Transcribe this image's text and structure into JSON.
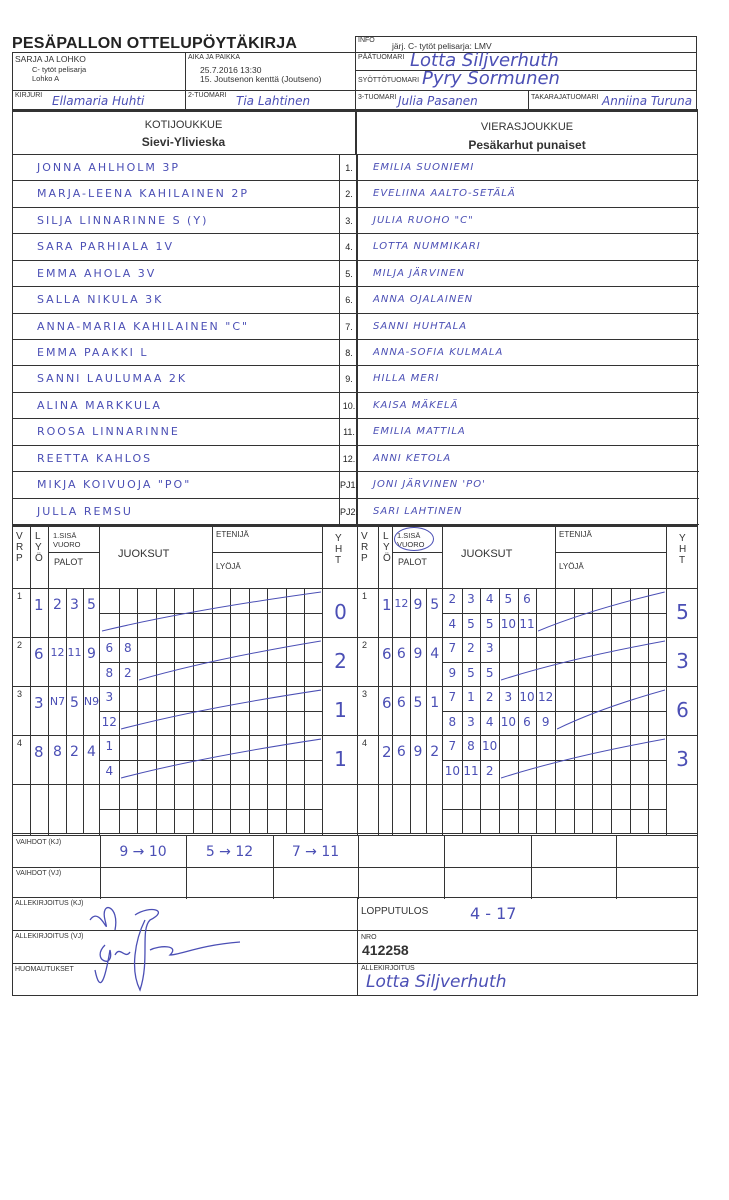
{
  "form": {
    "title": "PESÄPALLON OTTELUPÖYTÄKIRJA",
    "info_label": "INFO",
    "info_value": "järj. C- tytöt pelisarja: LMV",
    "series_label": "SARJA JA LOHKO",
    "series_value_1": "C- tytöt pelisarja",
    "series_value_2": "Lohko A",
    "time_place_label": "AIKA JA PAIKKA",
    "time_value": "25.7.2016 13:30",
    "place_value": "15. Joutsenon kenttä (Joutseno)",
    "head_umpire_label": "PÄÄTUOMARI",
    "head_umpire_value": "Lotta Siljverhuth",
    "pitch_umpire_label": "SYÖTTÖTUOMARI",
    "pitch_umpire_value": "Pyry Sormunen",
    "scorer_label": "KIRJURI",
    "scorer_value": "Ellamaria Huhti",
    "umpire2_label": "2-TUOMARI",
    "umpire2_value": "Tia Lahtinen",
    "umpire3_label": "3-TUOMARI",
    "umpire3_value": "Julia Pasanen",
    "back_umpire_label": "TAKARAJATUOMARI",
    "back_umpire_value": "Anniina Turuna"
  },
  "teams": {
    "home_label": "KOTIJOUKKUE",
    "home_name": "Sievi-Ylivieska",
    "away_label": "VIERASJOUKKUE",
    "away_name": "Pesäkarhut punaiset"
  },
  "roster": [
    {
      "no": "1.",
      "home": "JONNA AHLHOLM 3P",
      "away": "EMILIA SUONIEMI"
    },
    {
      "no": "2.",
      "home": "MARJA-LEENA KAHILAINEN 2P",
      "away": "EVELIINA AALTO-SETÄLÄ"
    },
    {
      "no": "3.",
      "home": "SILJA LINNARINNE S (Y)",
      "away": "JULIA RUOHO \"C\""
    },
    {
      "no": "4.",
      "home": "SARA PARHIALA 1V",
      "away": "LOTTA NUMMIKARI"
    },
    {
      "no": "5.",
      "home": "EMMA AHOLA 3V",
      "away": "MILJA JÄRVINEN"
    },
    {
      "no": "6.",
      "home": "SALLA NIKULA 3K",
      "away": "ANNA OJALAINEN"
    },
    {
      "no": "7.",
      "home": "ANNA-MARIA KAHILAINEN \"C\"",
      "away": "SANNI HUHTALA"
    },
    {
      "no": "8.",
      "home": "EMMA PAAKKI L",
      "away": "ANNA-SOFIA KULMALA"
    },
    {
      "no": "9.",
      "home": "SANNI LAULUMAA 2K",
      "away": "HILLA MERI"
    },
    {
      "no": "10.",
      "home": "ALINA MARKKULA",
      "away": "KAISA MÄKELÄ"
    },
    {
      "no": "11.",
      "home": "ROOSA LINNARINNE",
      "away": "EMILIA MATTILA"
    },
    {
      "no": "12.",
      "home": "REETTA KAHLOS",
      "away": "ANNI KETOLA"
    },
    {
      "no": "PJ1.",
      "home": "MIKJA KOIVUOJA \"PO\"",
      "away": "JONI JÄRVINEN 'PO'"
    },
    {
      "no": "PJ2.",
      "home": "JULLA REMSU",
      "away": "SARI LAHTINEN"
    }
  ],
  "score_headers": {
    "vrp": [
      "V",
      "R",
      "P"
    ],
    "lyo": [
      "L",
      "Y",
      "Ö"
    ],
    "first_inning": "1.SISÄ VUORO",
    "outs": "PALOT",
    "runs": "JUOKSUT",
    "runner": "ETENIJÄ",
    "batter": "LYÖJÄ",
    "total": [
      "Y",
      "H",
      "T"
    ]
  },
  "innings": {
    "home": [
      {
        "vrp": "1",
        "lyo": "1",
        "outs": [
          "2",
          "3",
          "5"
        ],
        "runner": [],
        "batter": [],
        "total": "0"
      },
      {
        "vrp": "2",
        "lyo": "6",
        "outs": [
          "12",
          "11",
          "9"
        ],
        "runner": [
          "6",
          "8"
        ],
        "batter": [
          "8",
          "2"
        ],
        "total": "2"
      },
      {
        "vrp": "3",
        "lyo": "3",
        "outs": [
          "N7",
          "5",
          "N9"
        ],
        "runner": [
          "3"
        ],
        "batter": [
          "12"
        ],
        "total": "1"
      },
      {
        "vrp": "4",
        "lyo": "8",
        "outs": [
          "8",
          "2",
          "4"
        ],
        "runner": [
          "1"
        ],
        "batter": [
          "4"
        ],
        "total": "1"
      }
    ],
    "away": [
      {
        "vrp": "1",
        "lyo": "1",
        "outs": [
          "12",
          "9",
          "5"
        ],
        "runner": [
          "2",
          "3",
          "4",
          "5",
          "6"
        ],
        "batter": [
          "4",
          "5",
          "5",
          "10",
          "11"
        ],
        "total": "5"
      },
      {
        "vrp": "2",
        "lyo": "6",
        "outs": [
          "6",
          "9",
          "4"
        ],
        "runner": [
          "7",
          "2",
          "3"
        ],
        "batter": [
          "9",
          "5",
          "5"
        ],
        "total": "3"
      },
      {
        "vrp": "3",
        "lyo": "6",
        "outs": [
          "6",
          "5",
          "1"
        ],
        "runner": [
          "7",
          "1",
          "2",
          "3",
          "10",
          "12"
        ],
        "batter": [
          "8",
          "3",
          "4",
          "10",
          "6",
          "9"
        ],
        "total": "6"
      },
      {
        "vrp": "4",
        "lyo": "2",
        "outs": [
          "6",
          "9",
          "2"
        ],
        "runner": [
          "7",
          "8",
          "10"
        ],
        "batter": [
          "10",
          "11",
          "2"
        ],
        "total": "3"
      }
    ]
  },
  "substitutions": {
    "home_label": "VAIHDOT (KJ)",
    "home": [
      "9 → 10",
      "5 → 12",
      "7 → 11"
    ],
    "away_label": "VAIHDOT (VJ)",
    "away": []
  },
  "footer": {
    "sign_home_label": "ALLEKIRJOITUS (KJ)",
    "sign_away_label": "ALLEKIRJOITUS (VJ)",
    "remarks_label": "HUOMAUTUKSET",
    "result_label": "LOPPUTULOS",
    "result_value": "4 - 17",
    "nro_label": "NRO",
    "nro_value": "412258",
    "signature_label": "ALLEKIRJOITUS",
    "signature_value": "Lotta Siljverhuth"
  },
  "ink_color": "#4b4fb5"
}
